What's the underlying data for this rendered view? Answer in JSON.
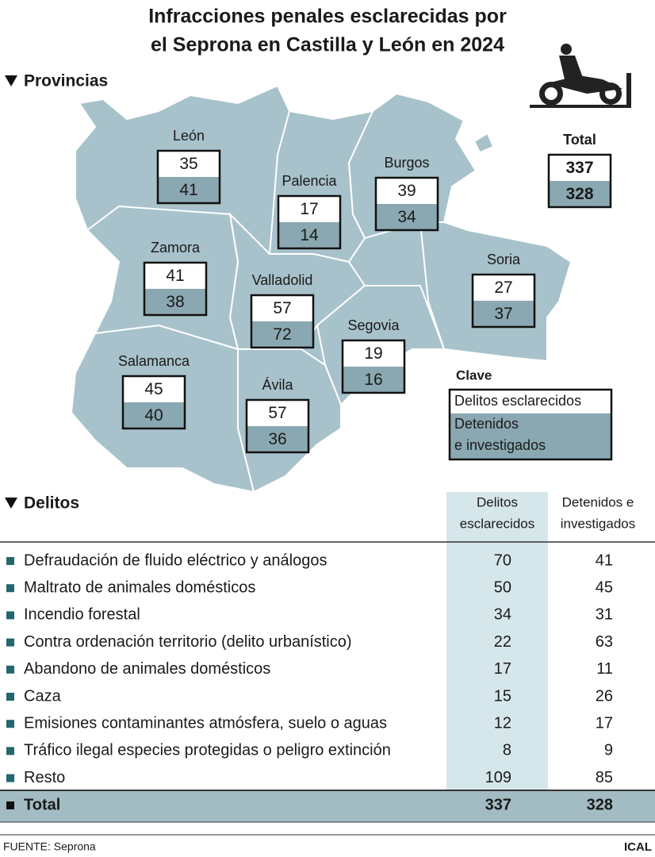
{
  "header": {
    "title": [
      "Infracciones penales esclarecidas por",
      "el Seprona en Castilla y León en 2024"
    ],
    "provinces_heading": "Provincias"
  },
  "provinces": [
    {
      "name": "León",
      "delitos": 35,
      "detenidos": 41
    },
    {
      "name": "Palencia",
      "delitos": 17,
      "detenidos": 14
    },
    {
      "name": "Burgos",
      "delitos": 39,
      "detenidos": 34
    },
    {
      "name": "Zamora",
      "delitos": 41,
      "detenidos": 38
    },
    {
      "name": "Valladolid",
      "delitos": 57,
      "detenidos": 72
    },
    {
      "name": "Soria",
      "delitos": 27,
      "detenidos": 37
    },
    {
      "name": "Segovia",
      "delitos": 19,
      "detenidos": 16
    },
    {
      "name": "Salamanca",
      "delitos": 45,
      "detenidos": 40
    },
    {
      "name": "Ávila",
      "delitos": 57,
      "detenidos": 36
    }
  ],
  "total": {
    "label": "Total",
    "delitos": 337,
    "detenidos": 328
  },
  "key": {
    "title": "Clave",
    "delitos": "Delitos esclarecidos",
    "detenidos": [
      "Detenidos",
      "e investigados"
    ]
  },
  "table": {
    "heading": "Delitos",
    "columns": [
      [
        "Delitos",
        "esclarecidos"
      ],
      [
        "Detenidos e",
        "investigados"
      ]
    ],
    "rows": [
      [
        "Defraudación de fluido eléctrico y análogos",
        70,
        41
      ],
      [
        "Maltrato de animales domésticos",
        50,
        45
      ],
      [
        "Incendio forestal",
        34,
        31
      ],
      [
        "Contra ordenación territorio (delito urbanístico)",
        22,
        63
      ],
      [
        "Abandono de animales domésticos",
        17,
        11
      ],
      [
        "Caza",
        15,
        26
      ],
      [
        "Emisiones contaminantes atmósfera, suelo o aguas",
        12,
        17
      ],
      [
        "Tráfico ilegal especies protegidas o peligro extinción",
        8,
        9
      ],
      [
        "Resto",
        109,
        85
      ]
    ],
    "total": [
      "Total",
      337,
      328
    ]
  },
  "footer": {
    "source": "FUENTE: Seprona",
    "credit": "ICAL"
  }
}
